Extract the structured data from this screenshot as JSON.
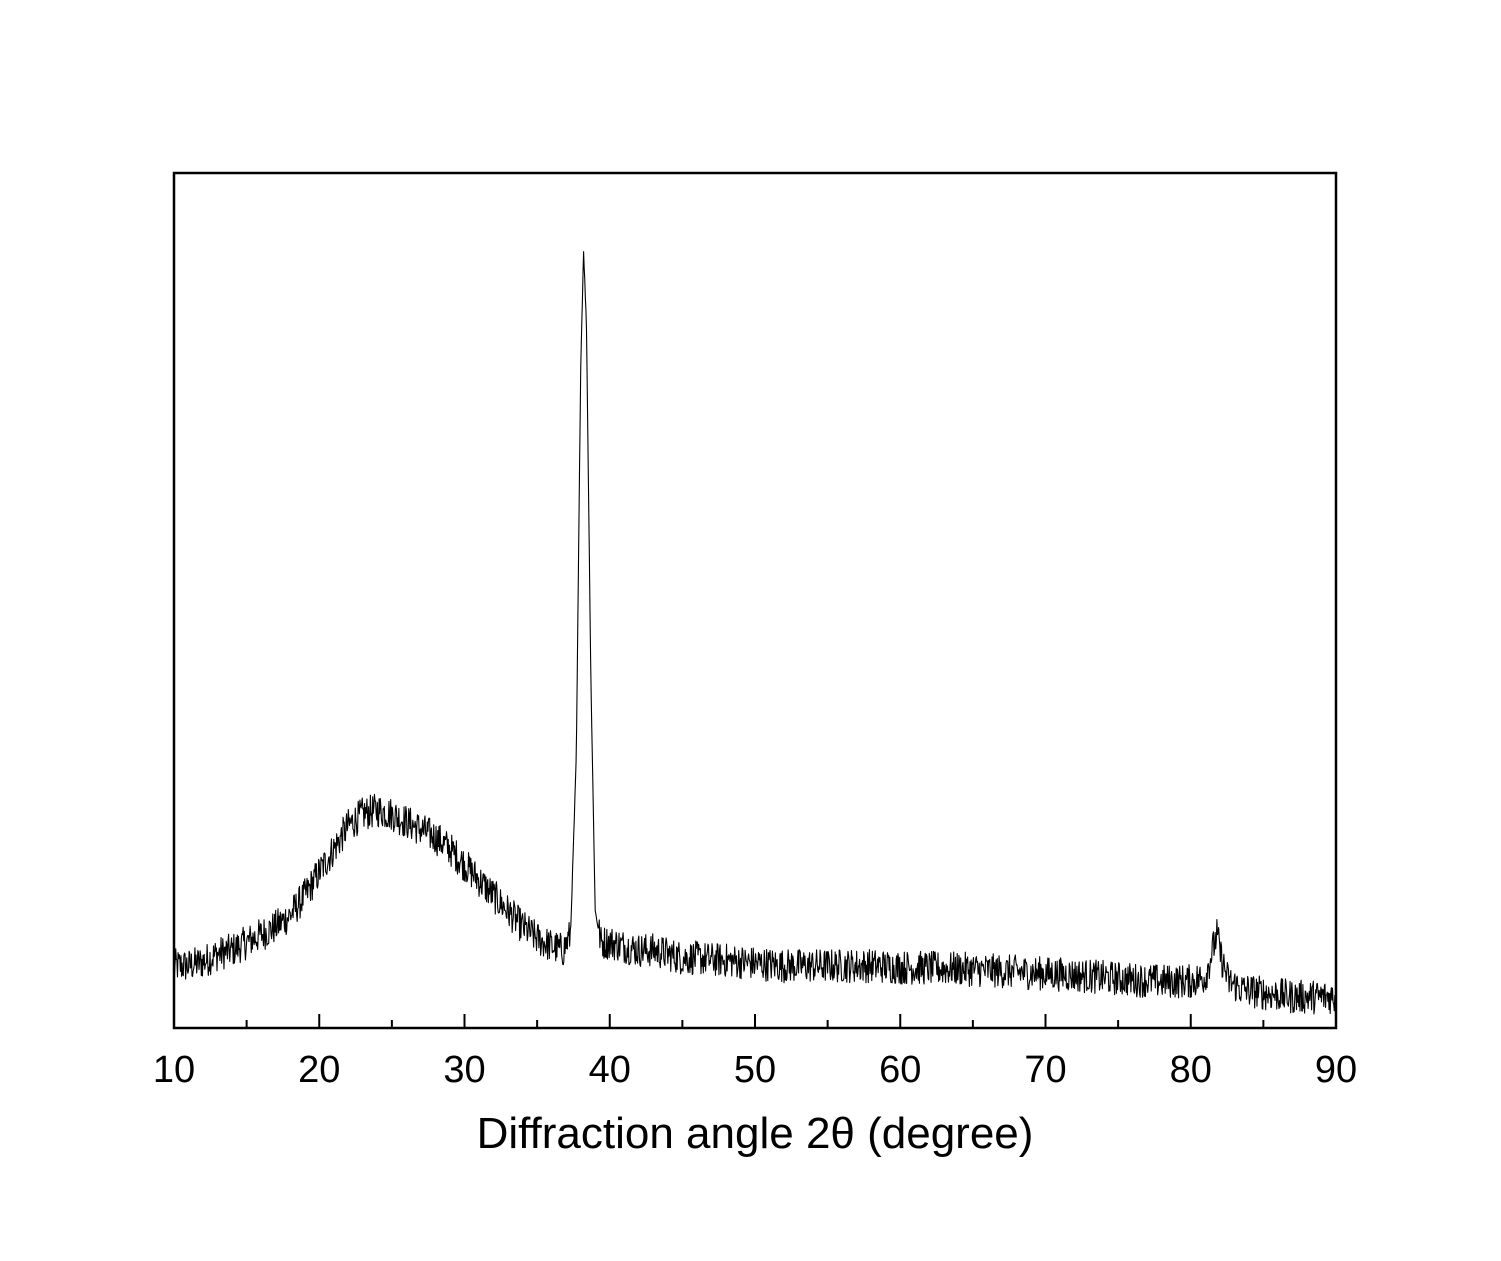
{
  "chart_data": {
    "type": "line",
    "title": "",
    "xlabel": "Diffraction angle 2θ (degree)",
    "ylabel": "",
    "xlim": [
      10,
      90
    ],
    "ylim": [
      0,
      1
    ],
    "x_ticks_major": [
      10,
      20,
      30,
      40,
      50,
      60,
      70,
      80,
      90
    ],
    "x_tick_labels": [
      "10",
      "20",
      "30",
      "40",
      "50",
      "60",
      "70",
      "80",
      "90"
    ],
    "x_ticks_minor": [
      15,
      25,
      35,
      45,
      55,
      65,
      75,
      85
    ],
    "y_tick_labels_shown": false,
    "grid": false,
    "legend": "none",
    "line_color": "#000000",
    "series": [
      {
        "x": [
          10,
          11,
          12,
          13,
          14,
          15,
          16,
          17,
          18,
          19,
          20,
          21,
          22,
          23,
          24,
          25,
          26,
          27,
          28,
          29,
          30,
          31,
          32,
          33,
          34,
          35,
          36,
          36.8,
          37.3,
          37.7,
          38.0,
          38.2,
          38.4,
          38.7,
          39.0,
          39.4,
          40,
          41,
          42,
          43,
          44,
          45,
          46,
          47,
          48,
          49,
          50,
          52,
          54,
          56,
          58,
          60,
          62,
          64,
          66,
          68,
          70,
          72,
          74,
          76,
          78,
          80,
          81,
          81.5,
          81.8,
          82.1,
          82.6,
          83.5,
          85,
          87,
          90
        ],
        "y": [
          0.08,
          0.08,
          0.085,
          0.095,
          0.1,
          0.11,
          0.12,
          0.13,
          0.145,
          0.17,
          0.2,
          0.23,
          0.26,
          0.275,
          0.28,
          0.275,
          0.265,
          0.255,
          0.245,
          0.23,
          0.21,
          0.19,
          0.17,
          0.15,
          0.13,
          0.115,
          0.105,
          0.1,
          0.12,
          0.35,
          0.85,
          1.0,
          0.9,
          0.45,
          0.15,
          0.11,
          0.11,
          0.105,
          0.1,
          0.1,
          0.095,
          0.09,
          0.09,
          0.088,
          0.087,
          0.085,
          0.083,
          0.08,
          0.08,
          0.08,
          0.08,
          0.078,
          0.077,
          0.076,
          0.074,
          0.072,
          0.07,
          0.068,
          0.065,
          0.062,
          0.06,
          0.06,
          0.065,
          0.1,
          0.12,
          0.09,
          0.06,
          0.05,
          0.045,
          0.04,
          0.04
        ]
      }
    ]
  }
}
